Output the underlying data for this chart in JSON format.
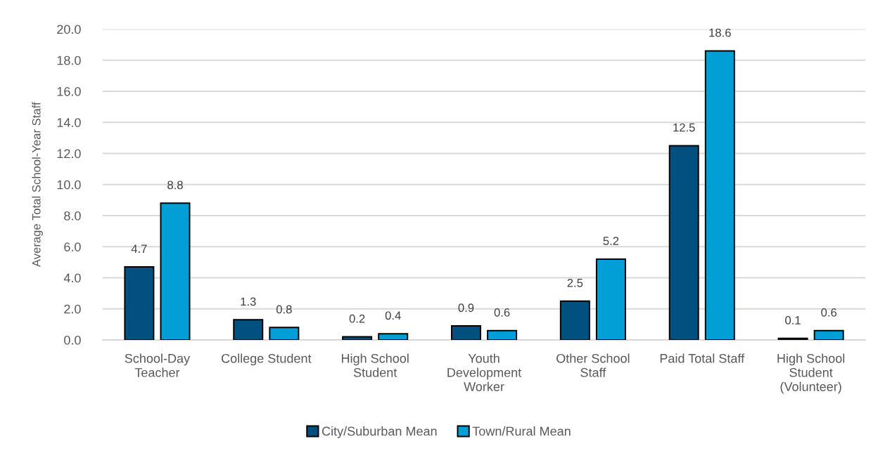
{
  "chart_data": {
    "type": "bar",
    "ylabel": "Average Total School-Year Staff",
    "categories": [
      "School-Day\nTeacher",
      "College Student",
      "High School\nStudent",
      "Youth\nDevelopment\nWorker",
      "Other School\nStaff",
      "Paid Total Staff",
      "High School\nStudent\n(Volunteer)"
    ],
    "series": [
      {
        "name": "City/Suburban Mean",
        "color": "#01507f",
        "values": [
          4.7,
          1.3,
          0.2,
          0.9,
          2.5,
          12.5,
          0.1
        ]
      },
      {
        "name": "Town/Rural Mean",
        "color": "#029fd6",
        "values": [
          8.8,
          0.8,
          0.4,
          0.6,
          5.2,
          18.6,
          0.6
        ]
      }
    ],
    "ylim": [
      0,
      20
    ],
    "yticks": [
      {
        "value": 0,
        "label": "0.0"
      },
      {
        "value": 2,
        "label": "2.0"
      },
      {
        "value": 4,
        "label": "4.0"
      },
      {
        "value": 6,
        "label": "6.0"
      },
      {
        "value": 8,
        "label": "8.0"
      },
      {
        "value": 10,
        "label": "10.0"
      },
      {
        "value": 12,
        "label": "12.0"
      },
      {
        "value": 14,
        "label": "14.0"
      },
      {
        "value": 16,
        "label": "16.0"
      },
      {
        "value": 18,
        "label": "18.0"
      },
      {
        "value": 20,
        "label": "20.0"
      }
    ],
    "grid": "y",
    "legend": "bottom",
    "data_labels": true
  }
}
